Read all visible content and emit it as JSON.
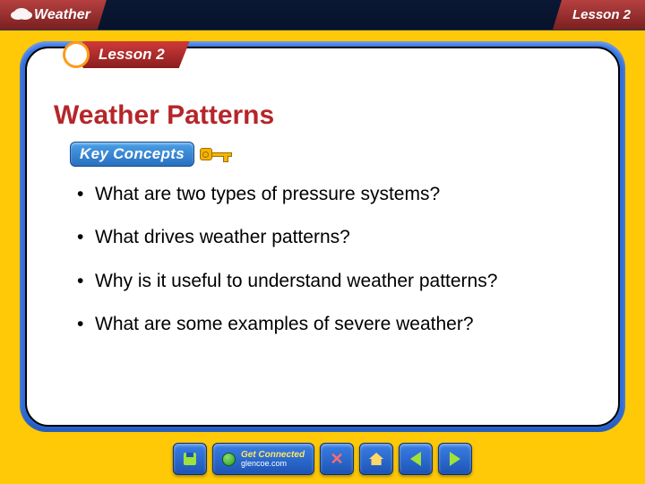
{
  "topbar": {
    "subject": "Weather",
    "lesson_label": "Lesson 2"
  },
  "lesson_tab": {
    "label": "Lesson 2"
  },
  "content": {
    "title": "Weather Patterns",
    "key_concepts_label": "Key Concepts",
    "bullets": [
      "What are two types of pressure systems?",
      "What drives weather patterns?",
      "Why is it useful to understand weather patterns?",
      "What are some examples of severe weather?"
    ]
  },
  "nav": {
    "get_connected": "Get Connected",
    "url": "glencoe.com"
  },
  "colors": {
    "slide_bg": "#ffc908",
    "frame_blue": "#2d6fe3",
    "title_red": "#b5262a"
  }
}
